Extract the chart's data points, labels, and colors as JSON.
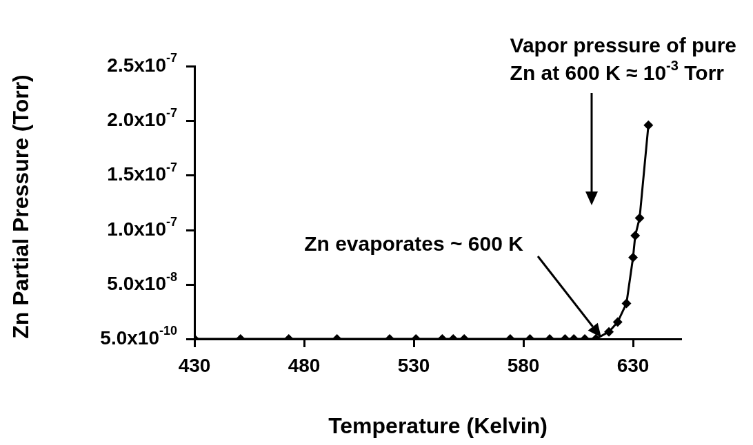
{
  "chart_data": {
    "type": "line",
    "xlabel": "Temperature (Kelvin)",
    "ylabel": "Zn Partial Pressure (Torr)",
    "annotations": [
      "Vapor pressure of pure\nZn at 600 K ≈ 10$^{-3}$ Torr",
      "Zn evaporates ~ 600 K"
    ],
    "x": [
      430,
      451,
      473,
      495,
      519,
      531,
      543,
      548,
      553,
      574,
      583,
      592,
      599,
      603,
      608,
      613,
      619,
      623,
      627,
      630,
      631,
      633,
      637
    ],
    "series": [
      {
        "color": "#000000",
        "values": [
          5e-10,
          5e-10,
          5e-10,
          5e-10,
          5e-10,
          5e-10,
          5e-10,
          5e-10,
          5e-10,
          5e-10,
          5e-10,
          5e-10,
          5e-10,
          5e-10,
          5e-10,
          5e-10,
          7e-09,
          1.6e-08,
          3.3e-08,
          7.5e-08,
          9.5e-08,
          1.11e-07,
          1.96e-07
        ]
      }
    ],
    "xlim": [
      430,
      652
    ],
    "xticks": [
      430,
      480,
      530,
      580,
      630
    ],
    "ylim": [
      5e-10,
      2.5e-07
    ],
    "yticks": [
      {
        "value": 5e-10,
        "label": "5.0x10$^{-10}$"
      },
      {
        "value": 5e-08,
        "label": "5.0x10$^{-8}$"
      },
      {
        "value": 1e-07,
        "label": "1.0x10$^{-7}$"
      },
      {
        "value": 1.5e-07,
        "label": "1.5x10$^{-7}$"
      },
      {
        "value": 2e-07,
        "label": "2.0x10$^{-7}$"
      },
      {
        "value": 2.5e-07,
        "label": "2.5x10$^{-7}$"
      }
    ],
    "grid": false,
    "legend": false,
    "marker": "diamond",
    "line_style": "solid"
  }
}
